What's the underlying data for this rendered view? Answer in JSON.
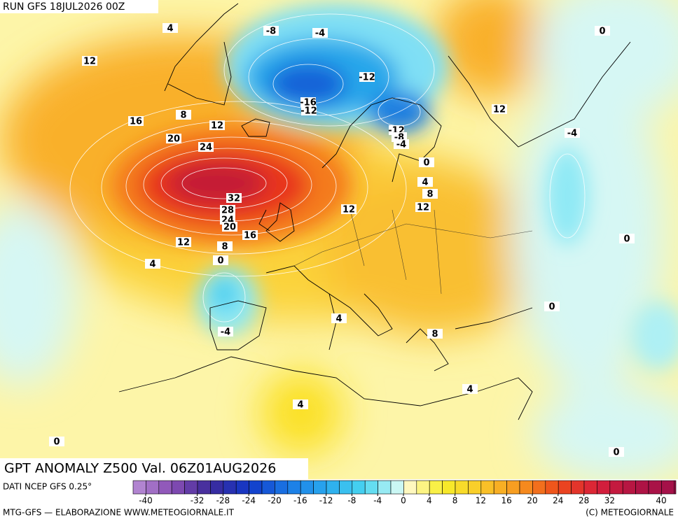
{
  "header": {
    "run": "RUN GFS 18JUL2026 00Z"
  },
  "map": {
    "title": "GPT ANOMALY Z500 Val. 06Z01AUG2026",
    "contour_labels": [
      4,
      -8,
      -4,
      0,
      12,
      -12,
      -16,
      -12,
      12,
      16,
      8,
      12,
      -12,
      -8,
      -4,
      -4,
      20,
      24,
      0,
      4,
      8,
      32,
      12,
      28,
      12,
      24,
      20,
      16,
      0,
      12,
      8,
      0,
      4,
      0,
      4,
      -4,
      8,
      4,
      4,
      0,
      0
    ]
  },
  "colorbar": {
    "source": "DATI NCEP GFS 0.25°",
    "ticks": [
      -40,
      -32,
      -28,
      -24,
      -20,
      -16,
      -12,
      -8,
      -4,
      0,
      4,
      8,
      12,
      16,
      20,
      24,
      28,
      32,
      40
    ]
  },
  "footer": {
    "left": "MTG-GFS — ELABORAZIONE WWW.METEOGIORNALE.IT",
    "right": "(C) METEOGIORNALE"
  }
}
